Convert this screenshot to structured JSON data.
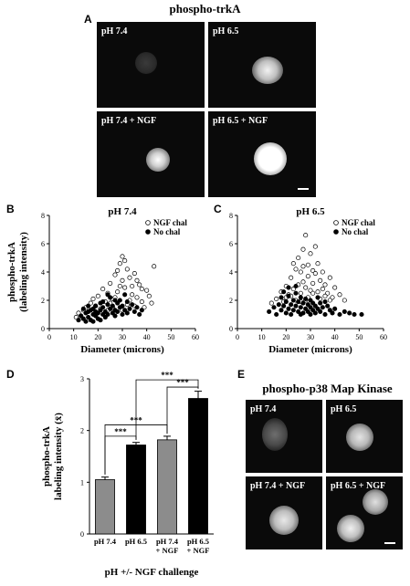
{
  "figure": {
    "panel_a": {
      "letter": "A",
      "title": "phospho-trkA",
      "images": [
        {
          "label": "pH 7.4",
          "cell_brightness": 0.25
        },
        {
          "label": "pH 6.5",
          "cell_brightness": 0.75
        },
        {
          "label": "pH 7.4 + NGF",
          "cell_brightness": 0.8
        },
        {
          "label": "pH 6.5 + NGF",
          "cell_brightness": 1.0
        }
      ]
    },
    "panel_b": {
      "letter": "B"
    },
    "panel_c": {
      "letter": "C"
    },
    "panel_d": {
      "letter": "D"
    },
    "panel_e": {
      "letter": "E",
      "title": "phospho-p38 Map Kinase",
      "images": [
        {
          "label": "pH 7.4",
          "cell_brightness": 0.45
        },
        {
          "label": "pH 6.5",
          "cell_brightness": 0.75
        },
        {
          "label": "pH 7.4 + NGF",
          "cell_brightness": 0.78
        },
        {
          "label": "pH 6.5 + NGF",
          "cell_brightness": 0.85
        }
      ]
    }
  },
  "chart_data": [
    {
      "id": "B",
      "type": "scatter",
      "title": "pH 7.4",
      "xlabel": "Diameter (microns)",
      "ylabel_lines": [
        "phospho-trkA",
        "(labeling intensity)"
      ],
      "xlim": [
        0,
        60
      ],
      "ylim": [
        0,
        8
      ],
      "xticks": [
        0,
        10,
        20,
        30,
        40,
        50,
        60
      ],
      "yticks": [
        0,
        2,
        4,
        6,
        8
      ],
      "legend": [
        {
          "name": "NGF chal",
          "marker": "open-circle"
        },
        {
          "name": "No chal",
          "marker": "filled-circle"
        }
      ],
      "legend_position": "top-right",
      "series": [
        {
          "name": "NGF chal",
          "marker": "open-circle",
          "points": [
            [
              11,
              0.8
            ],
            [
              12,
              1.1
            ],
            [
              13,
              0.9
            ],
            [
              14,
              1.3
            ],
            [
              15,
              1.5
            ],
            [
              16,
              1.2
            ],
            [
              17,
              1.8
            ],
            [
              18,
              2.1
            ],
            [
              19,
              1.6
            ],
            [
              20,
              2.3
            ],
            [
              21,
              1.4
            ],
            [
              22,
              2.8
            ],
            [
              23,
              1.9
            ],
            [
              24,
              2.5
            ],
            [
              25,
              3.2
            ],
            [
              26,
              2.1
            ],
            [
              27,
              3.8
            ],
            [
              28,
              2.6
            ],
            [
              29,
              4.6
            ],
            [
              30,
              5.1
            ],
            [
              30,
              3.4
            ],
            [
              31,
              2.9
            ],
            [
              32,
              4.2
            ],
            [
              33,
              3.6
            ],
            [
              34,
              2.4
            ],
            [
              35,
              3.9
            ],
            [
              36,
              2.2
            ],
            [
              37,
              3.1
            ],
            [
              38,
              1.9
            ],
            [
              40,
              2.7
            ],
            [
              42,
              1.8
            ],
            [
              43,
              4.4
            ],
            [
              28,
              4.1
            ],
            [
              29,
              3.0
            ],
            [
              31,
              4.8
            ],
            [
              33,
              2.0
            ],
            [
              35,
              1.6
            ],
            [
              26,
              1.5
            ],
            [
              24,
              1.3
            ],
            [
              36,
              3.4
            ],
            [
              38,
              2.8
            ],
            [
              27,
              2.2
            ],
            [
              32,
              1.7
            ],
            [
              39,
              1.5
            ],
            [
              41,
              2.3
            ],
            [
              25,
              1.8
            ],
            [
              30,
              1.3
            ],
            [
              34,
              3.0
            ]
          ]
        },
        {
          "name": "No chal",
          "marker": "filled-circle",
          "points": [
            [
              12,
              0.6
            ],
            [
              13,
              0.9
            ],
            [
              14,
              0.7
            ],
            [
              15,
              1.1
            ],
            [
              15,
              0.5
            ],
            [
              16,
              1.2
            ],
            [
              16,
              0.8
            ],
            [
              17,
              1.3
            ],
            [
              17,
              0.6
            ],
            [
              18,
              1.0
            ],
            [
              18,
              1.4
            ],
            [
              19,
              0.9
            ],
            [
              19,
              1.6
            ],
            [
              20,
              1.1
            ],
            [
              20,
              0.7
            ],
            [
              21,
              1.3
            ],
            [
              21,
              1.8
            ],
            [
              22,
              1.0
            ],
            [
              22,
              1.5
            ],
            [
              23,
              0.8
            ],
            [
              23,
              1.2
            ],
            [
              24,
              1.7
            ],
            [
              24,
              1.0
            ],
            [
              25,
              1.4
            ],
            [
              25,
              2.2
            ],
            [
              26,
              1.1
            ],
            [
              26,
              1.6
            ],
            [
              27,
              1.3
            ],
            [
              27,
              0.9
            ],
            [
              28,
              1.8
            ],
            [
              28,
              1.2
            ],
            [
              29,
              1.5
            ],
            [
              29,
              2.0
            ],
            [
              30,
              1.0
            ],
            [
              30,
              1.6
            ],
            [
              31,
              1.3
            ],
            [
              32,
              1.9
            ],
            [
              32,
              1.1
            ],
            [
              33,
              1.4
            ],
            [
              34,
              1.7
            ],
            [
              35,
              1.2
            ],
            [
              36,
              1.5
            ],
            [
              37,
              1.0
            ],
            [
              38,
              1.3
            ],
            [
              14,
              1.4
            ],
            [
              18,
              0.5
            ],
            [
              21,
              0.6
            ],
            [
              24,
              2.4
            ],
            [
              27,
              2.0
            ],
            [
              31,
              2.4
            ],
            [
              16,
              1.6
            ],
            [
              19,
              1.2
            ],
            [
              22,
              1.9
            ]
          ]
        }
      ]
    },
    {
      "id": "C",
      "type": "scatter",
      "title": "pH 6.5",
      "xlabel": "Diameter (microns)",
      "xlim": [
        0,
        60
      ],
      "ylim": [
        0,
        8
      ],
      "xticks": [
        0,
        10,
        20,
        30,
        40,
        50,
        60
      ],
      "yticks": [
        0,
        2,
        4,
        6,
        8
      ],
      "legend": [
        {
          "name": "NGF chal",
          "marker": "open-circle"
        },
        {
          "name": "No chal",
          "marker": "filled-circle"
        }
      ],
      "legend_position": "top-right",
      "series": [
        {
          "name": "NGF chal",
          "marker": "open-circle",
          "points": [
            [
              14,
              1.8
            ],
            [
              16,
              2.1
            ],
            [
              18,
              2.6
            ],
            [
              19,
              1.9
            ],
            [
              20,
              3.0
            ],
            [
              21,
              2.4
            ],
            [
              22,
              3.6
            ],
            [
              23,
              2.8
            ],
            [
              24,
              4.2
            ],
            [
              25,
              3.1
            ],
            [
              25,
              5.0
            ],
            [
              26,
              2.5
            ],
            [
              26,
              4.0
            ],
            [
              27,
              5.6
            ],
            [
              27,
              3.3
            ],
            [
              28,
              6.6
            ],
            [
              28,
              2.9
            ],
            [
              29,
              4.5
            ],
            [
              29,
              3.7
            ],
            [
              30,
              5.3
            ],
            [
              30,
              2.7
            ],
            [
              31,
              4.1
            ],
            [
              31,
              3.2
            ],
            [
              32,
              3.9
            ],
            [
              32,
              5.8
            ],
            [
              33,
              2.6
            ],
            [
              33,
              4.6
            ],
            [
              34,
              3.4
            ],
            [
              35,
              2.8
            ],
            [
              35,
              4.0
            ],
            [
              36,
              3.1
            ],
            [
              37,
              2.5
            ],
            [
              38,
              3.6
            ],
            [
              39,
              2.2
            ],
            [
              40,
              2.9
            ],
            [
              42,
              2.4
            ],
            [
              44,
              2.0
            ],
            [
              24,
              2.0
            ],
            [
              22,
              2.3
            ],
            [
              29,
              2.2
            ],
            [
              31,
              2.5
            ],
            [
              26,
              1.9
            ],
            [
              34,
              2.1
            ],
            [
              36,
              2.3
            ],
            [
              28,
              2.0
            ],
            [
              38,
              2.0
            ],
            [
              20,
              2.2
            ],
            [
              23,
              4.6
            ],
            [
              27,
              4.4
            ]
          ]
        },
        {
          "name": "No chal",
          "marker": "filled-circle",
          "points": [
            [
              13,
              1.2
            ],
            [
              15,
              1.5
            ],
            [
              16,
              1.0
            ],
            [
              17,
              1.7
            ],
            [
              18,
              1.3
            ],
            [
              18,
              2.2
            ],
            [
              19,
              1.6
            ],
            [
              19,
              2.6
            ],
            [
              20,
              1.1
            ],
            [
              20,
              1.9
            ],
            [
              21,
              1.4
            ],
            [
              21,
              2.3
            ],
            [
              22,
              1.7
            ],
            [
              22,
              1.0
            ],
            [
              23,
              2.0
            ],
            [
              23,
              1.3
            ],
            [
              24,
              1.6
            ],
            [
              24,
              2.5
            ],
            [
              25,
              1.2
            ],
            [
              25,
              1.9
            ],
            [
              26,
              1.5
            ],
            [
              26,
              2.2
            ],
            [
              27,
              1.1
            ],
            [
              27,
              1.8
            ],
            [
              28,
              1.4
            ],
            [
              28,
              2.1
            ],
            [
              29,
              1.7
            ],
            [
              29,
              1.2
            ],
            [
              30,
              1.5
            ],
            [
              30,
              2.0
            ],
            [
              31,
              1.3
            ],
            [
              31,
              1.8
            ],
            [
              32,
              1.6
            ],
            [
              32,
              1.1
            ],
            [
              33,
              1.4
            ],
            [
              34,
              1.8
            ],
            [
              34,
              1.2
            ],
            [
              35,
              1.5
            ],
            [
              36,
              1.0
            ],
            [
              37,
              1.6
            ],
            [
              38,
              1.3
            ],
            [
              39,
              1.1
            ],
            [
              40,
              1.4
            ],
            [
              42,
              1.0
            ],
            [
              44,
              1.2
            ],
            [
              46,
              1.1
            ],
            [
              48,
              1.0
            ],
            [
              51,
              1.0
            ],
            [
              21,
              2.9
            ],
            [
              24,
              3.0
            ],
            [
              26,
              1.0
            ],
            [
              30,
              1.0
            ],
            [
              33,
              2.2
            ],
            [
              36,
              1.9
            ]
          ]
        }
      ]
    },
    {
      "id": "D",
      "type": "bar",
      "ylabel_lines": [
        "phospho-trkA",
        "labeling intensity (x̄)"
      ],
      "xlabel": "pH +/- NGF challenge",
      "ylim": [
        0,
        3
      ],
      "yticks": [
        0,
        1,
        2,
        3
      ],
      "categories": [
        [
          "pH 7.4"
        ],
        [
          "pH 6.5"
        ],
        [
          "pH 7.4",
          "+ NGF"
        ],
        [
          "pH 6.5",
          "+ NGF"
        ]
      ],
      "values": [
        1.05,
        1.72,
        1.82,
        2.62
      ],
      "errors": [
        0.05,
        0.05,
        0.07,
        0.14
      ],
      "bar_colors": [
        "#8c8c8c",
        "#000000",
        "#8c8c8c",
        "#000000"
      ],
      "significance": [
        {
          "from": 0,
          "to": 1,
          "label": "***"
        },
        {
          "from": 0,
          "to": 2,
          "label": "***"
        },
        {
          "from": 1,
          "to": 3,
          "label": "***"
        },
        {
          "from": 2,
          "to": 3,
          "label": "***"
        }
      ]
    }
  ]
}
